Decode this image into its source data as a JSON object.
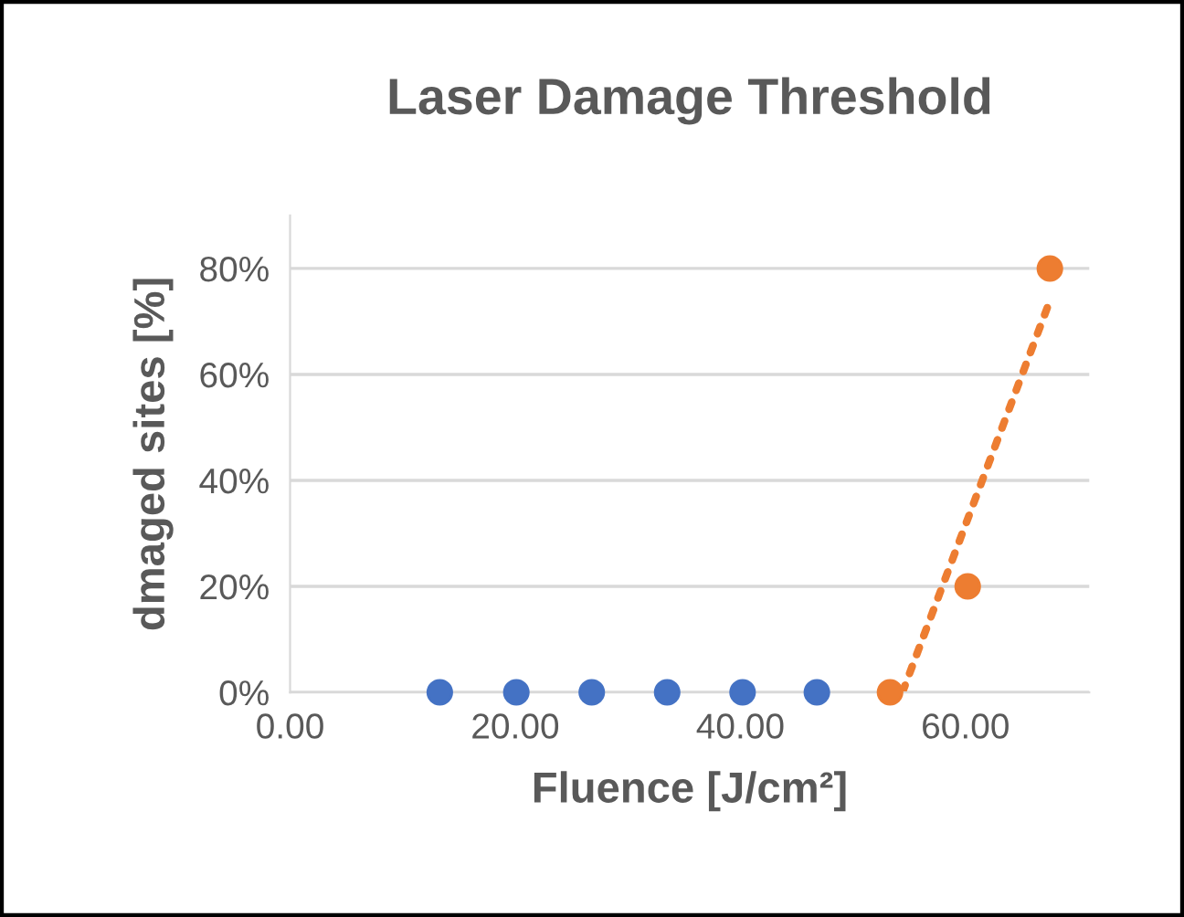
{
  "chart_data": {
    "type": "scatter",
    "title": "Laser Damage Threshold",
    "xlabel": "Fluence [J/cm²]",
    "ylabel": "dmaged sites [%]",
    "series": [
      {
        "color": "#4472c4",
        "x": [
          13.3,
          20.1,
          26.8,
          33.5,
          40.2,
          46.8
        ],
        "values": [
          0,
          0,
          0,
          0,
          0,
          0
        ]
      },
      {
        "color": "#ed7d31",
        "x": [
          53.3,
          60.2,
          67.5
        ],
        "values": [
          0,
          20,
          80
        ]
      },
      {
        "type": "line",
        "color": "#ed7d31",
        "line_style": "dotted",
        "marker": "none",
        "x": [
          54.4,
          67.5
        ],
        "values": [
          0,
          73.9
        ]
      }
    ],
    "marker": "circle",
    "xlim": [
      0,
      71
    ],
    "ylim": [
      0,
      90
    ],
    "xticks": [
      {
        "value": 0,
        "label": "0.00"
      },
      {
        "value": 20,
        "label": "20.00"
      },
      {
        "value": 40,
        "label": "40.00"
      },
      {
        "value": 60,
        "label": "60.00"
      }
    ],
    "yticks": [
      {
        "value": 0,
        "label": "0%"
      },
      {
        "value": 20,
        "label": "20%"
      },
      {
        "value": 40,
        "label": "40%"
      },
      {
        "value": 60,
        "label": "60%"
      },
      {
        "value": 80,
        "label": "80%"
      }
    ],
    "grid": "y",
    "legend": false
  }
}
